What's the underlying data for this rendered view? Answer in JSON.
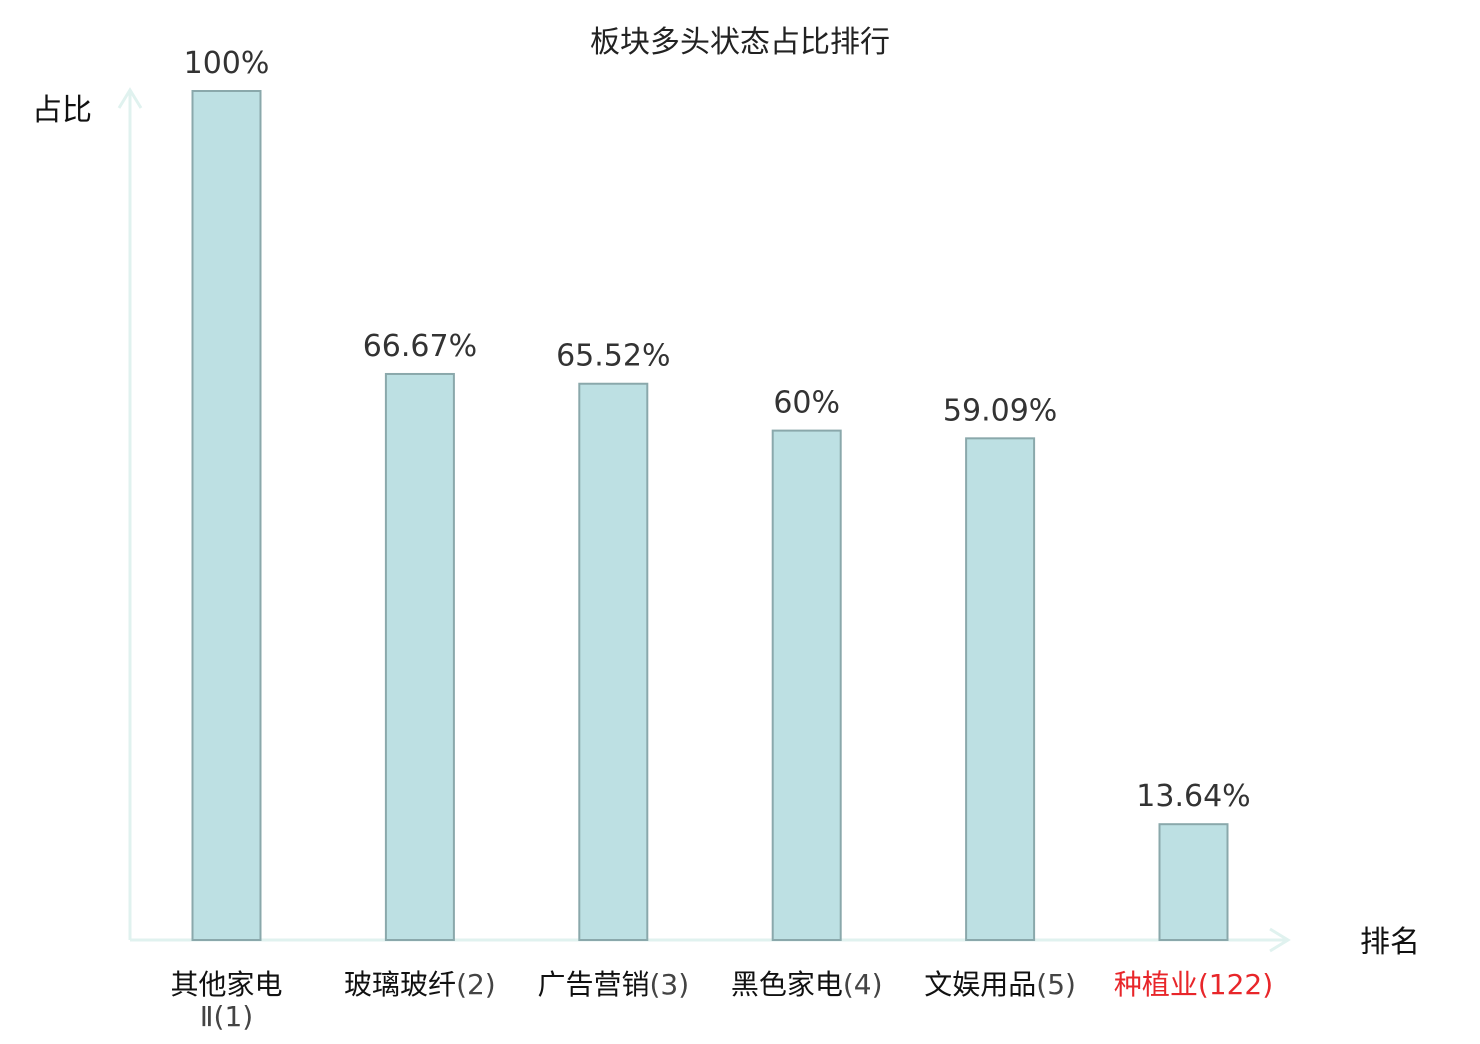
{
  "chart_data": {
    "type": "bar",
    "title": "板块多头状态占比排行",
    "ylabel": "占比",
    "xlabel": "排名",
    "ylim": [
      0,
      100
    ],
    "grid": false,
    "categories": [
      {
        "name": "其他家电Ⅱ",
        "rank": "(1)",
        "highlight": false
      },
      {
        "name": "玻璃玻纤",
        "rank": "(2)",
        "highlight": false
      },
      {
        "name": "广告营销",
        "rank": "(3)",
        "highlight": false
      },
      {
        "name": "黑色家电",
        "rank": "(4)",
        "highlight": false
      },
      {
        "name": "文娱用品",
        "rank": "(5)",
        "highlight": false
      },
      {
        "name": "种植业",
        "rank": "(122)",
        "highlight": true
      }
    ],
    "values": [
      100,
      66.67,
      65.52,
      60,
      59.09,
      13.64
    ],
    "value_labels": [
      "100%",
      "66.67%",
      "65.52%",
      "60%",
      "59.09%",
      "13.64%"
    ],
    "colors": {
      "bar_fill": "#bde0e3",
      "bar_stroke": "#8aa8ab",
      "axis": "#e0f2ef",
      "label_normal_name": "#111111",
      "label_normal_rank": "#444444",
      "label_highlight": "#e8262a",
      "value_label": "#333333"
    }
  }
}
